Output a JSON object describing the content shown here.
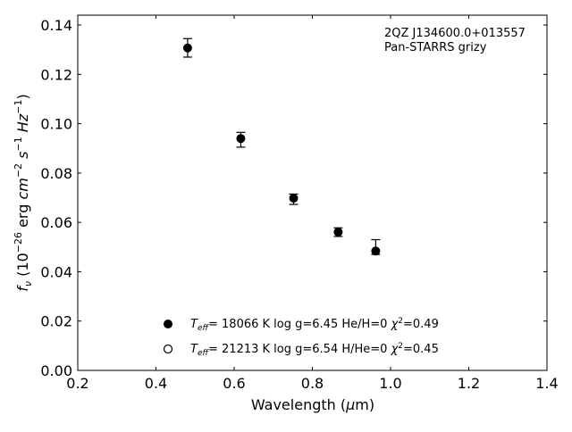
{
  "chart_data": {
    "type": "scatter",
    "title": "",
    "xlabel": "Wavelength (μm)",
    "ylabel": "f_ν (10^−26 erg cm^−2 s^−1 Hz^−1)",
    "xlim": [
      0.2,
      1.4
    ],
    "ylim": [
      0.0,
      0.144
    ],
    "xticks": [
      0.2,
      0.4,
      0.6,
      0.8,
      1.0,
      1.2,
      1.4
    ],
    "xtick_labels": [
      "0.2",
      "0.4",
      "0.6",
      "0.8",
      "1.0",
      "1.2",
      "1.4"
    ],
    "yticks": [
      0.0,
      0.02,
      0.04,
      0.06,
      0.08,
      0.1,
      0.12,
      0.14
    ],
    "ytick_labels": [
      "0.00",
      "0.02",
      "0.04",
      "0.06",
      "0.08",
      "0.10",
      "0.12",
      "0.14"
    ],
    "grid": false,
    "annotation": [
      "2QZ J134600.0+013557",
      "Pan-STARRS grizy"
    ],
    "series": [
      {
        "marker": "filled-circle",
        "points": [
          {
            "x": 0.481,
            "y": 0.1307,
            "ylow": 0.127,
            "yhigh": 0.1345
          },
          {
            "x": 0.617,
            "y": 0.094,
            "ylow": 0.0905,
            "yhigh": 0.0965
          },
          {
            "x": 0.752,
            "y": 0.0698,
            "ylow": 0.0673,
            "yhigh": 0.0715
          },
          {
            "x": 0.866,
            "y": 0.0561,
            "ylow": 0.0543,
            "yhigh": 0.0578
          },
          {
            "x": 0.962,
            "y": 0.0484,
            "ylow": 0.047,
            "yhigh": 0.053
          }
        ]
      }
    ],
    "legend": {
      "placement": "lower-center",
      "entries": [
        {
          "marker": "filled-circle",
          "text": "T_eff= 18066 K  log g=6.45  He/H=0  χ²=0.49"
        },
        {
          "marker": "open-circle",
          "text": "T_eff= 21213 K  log g=6.54  H/He=0  χ²=0.45"
        }
      ]
    }
  }
}
